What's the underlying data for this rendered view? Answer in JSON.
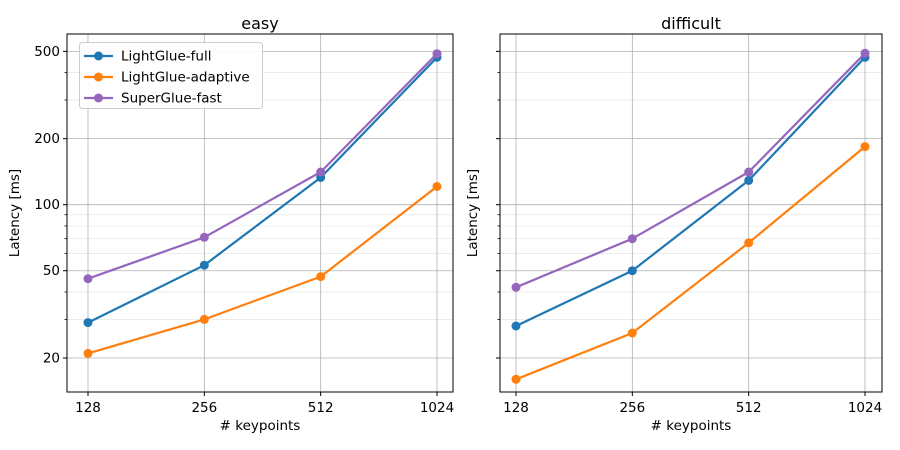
{
  "figure": {
    "background": "#ffffff"
  },
  "style": {
    "major_grid_color": "#b0b0b0",
    "minor_grid_color": "#e6e6e6",
    "spine_color": "#000000",
    "legend_border_color": "#cccccc"
  },
  "chart_data": [
    {
      "type": "line",
      "title": "easy",
      "xlabel": "# keypoints",
      "ylabel": "Latency [ms]",
      "xscale": "log2",
      "yscale": "log10",
      "grid": true,
      "x": [
        128,
        256,
        512,
        1024
      ],
      "xtick_labels": [
        "128",
        "256",
        "512",
        "1024"
      ],
      "yticks": [
        20,
        50,
        100,
        200,
        500
      ],
      "ytick_labels": [
        "20",
        "50",
        "100",
        "200",
        "500"
      ],
      "ylim": [
        14,
        600
      ],
      "show_ytick_labels": true,
      "show_legend": true,
      "legend_position": "upper-left",
      "series": [
        {
          "name": "LightGlue-full",
          "color": "#1f77b4",
          "values": [
            29,
            53,
            133,
            470
          ]
        },
        {
          "name": "LightGlue-adaptive",
          "color": "#ff7f0e",
          "values": [
            21,
            30,
            47,
            121
          ]
        },
        {
          "name": "SuperGlue-fast",
          "color": "#9467bd",
          "values": [
            46,
            71,
            141,
            488
          ]
        }
      ]
    },
    {
      "type": "line",
      "title": "difficult",
      "xlabel": "# keypoints",
      "ylabel": "Latency [ms]",
      "xscale": "log2",
      "yscale": "log10",
      "grid": true,
      "x": [
        128,
        256,
        512,
        1024
      ],
      "xtick_labels": [
        "128",
        "256",
        "512",
        "1024"
      ],
      "yticks": [
        20,
        50,
        100,
        200,
        500
      ],
      "ytick_labels": [
        "20",
        "50",
        "100",
        "200",
        "500"
      ],
      "ylim": [
        14,
        600
      ],
      "show_ytick_labels": false,
      "show_legend": false,
      "legend_position": "none",
      "series": [
        {
          "name": "LightGlue-full",
          "color": "#1f77b4",
          "values": [
            28,
            50,
            129,
            470
          ]
        },
        {
          "name": "LightGlue-adaptive",
          "color": "#ff7f0e",
          "values": [
            16,
            26,
            67,
            184
          ]
        },
        {
          "name": "SuperGlue-fast",
          "color": "#9467bd",
          "values": [
            42,
            70,
            141,
            490
          ]
        }
      ]
    }
  ]
}
